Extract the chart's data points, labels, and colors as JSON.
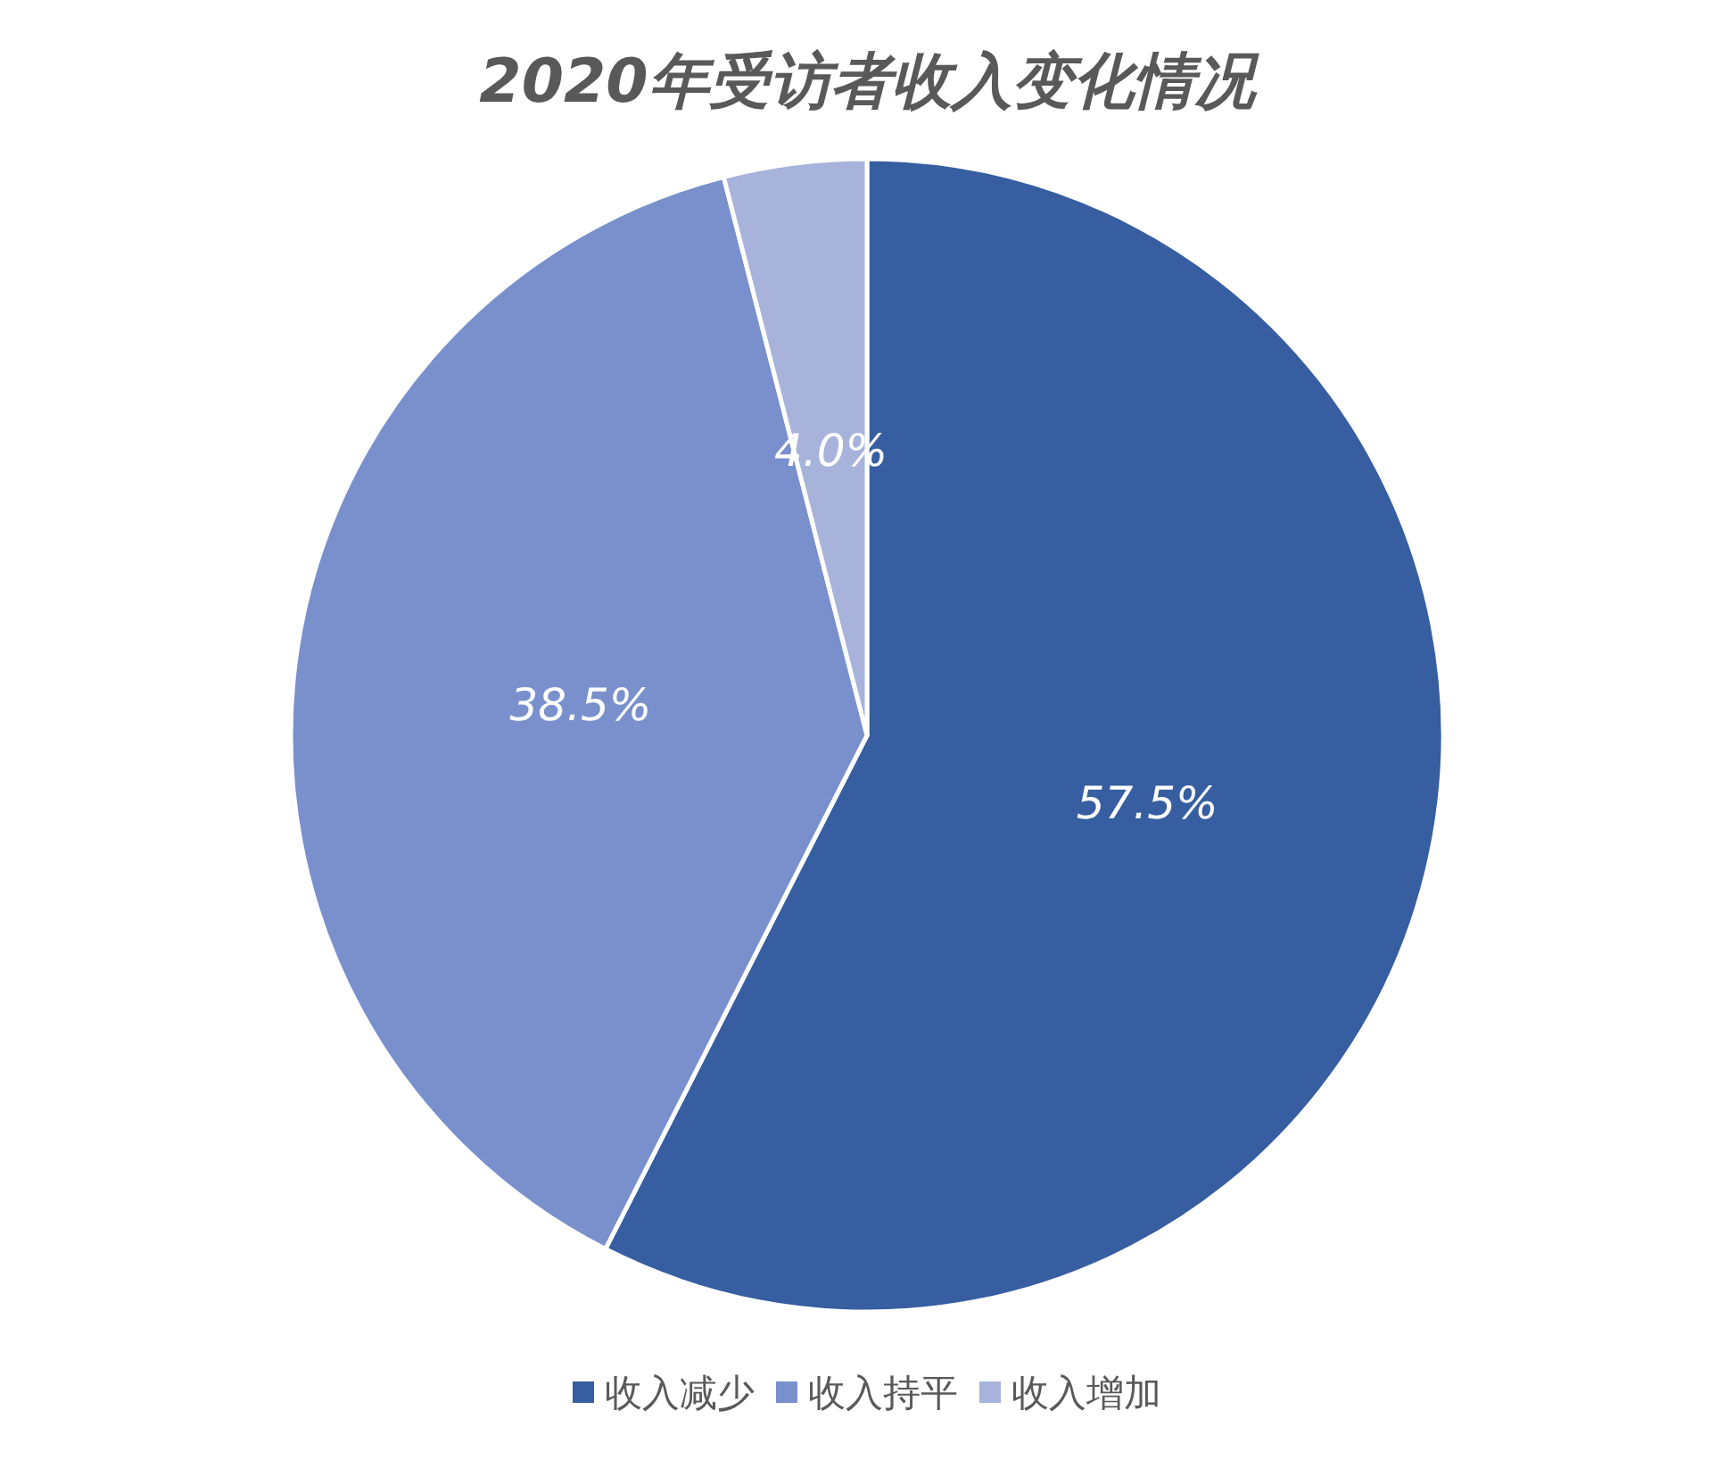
{
  "chart_data": {
    "type": "pie",
    "title": "2020年受访者收入变化情况",
    "categories": [
      "收入减少",
      "收入持平",
      "收入增加"
    ],
    "values": [
      57.5,
      38.5,
      4.0
    ],
    "colors": [
      "#365ea0",
      "#7990cd",
      "#a7b3da"
    ],
    "value_labels": [
      "57.5%",
      "38.5%",
      "4.0%"
    ],
    "legend": "bottom"
  }
}
